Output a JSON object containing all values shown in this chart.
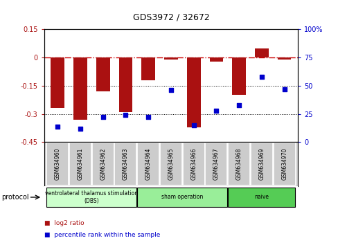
{
  "title": "GDS3972 / 32672",
  "samples": [
    "GSM634960",
    "GSM634961",
    "GSM634962",
    "GSM634963",
    "GSM634964",
    "GSM634965",
    "GSM634966",
    "GSM634967",
    "GSM634968",
    "GSM634969",
    "GSM634970"
  ],
  "log2_ratio": [
    -0.27,
    -0.33,
    -0.18,
    -0.29,
    -0.12,
    -0.01,
    -0.37,
    -0.02,
    -0.2,
    0.05,
    -0.01
  ],
  "percentile_rank": [
    14,
    12,
    22,
    24,
    22,
    46,
    15,
    28,
    33,
    58,
    47
  ],
  "bar_color": "#aa1111",
  "dot_color": "#0000cc",
  "zero_line_color": "#cc0000",
  "left_ylim": [
    -0.45,
    0.15
  ],
  "right_ylim": [
    0,
    100
  ],
  "left_yticks": [
    0.15,
    0.0,
    -0.15,
    -0.3,
    -0.45
  ],
  "right_yticks": [
    100,
    75,
    50,
    25,
    0
  ],
  "groups": [
    {
      "label": "ventrolateral thalamus stimulation\n(DBS)",
      "start": 0,
      "end": 3,
      "color": "#ccffcc"
    },
    {
      "label": "sham operation",
      "start": 4,
      "end": 7,
      "color": "#99ee99"
    },
    {
      "label": "naive",
      "start": 8,
      "end": 10,
      "color": "#55cc55"
    }
  ],
  "protocol_label": "protocol",
  "legend_items": [
    {
      "label": "log2 ratio",
      "color": "#aa1111"
    },
    {
      "label": "percentile rank within the sample",
      "color": "#0000cc"
    }
  ],
  "background_color": "#ffffff",
  "sample_box_color": "#cccccc"
}
